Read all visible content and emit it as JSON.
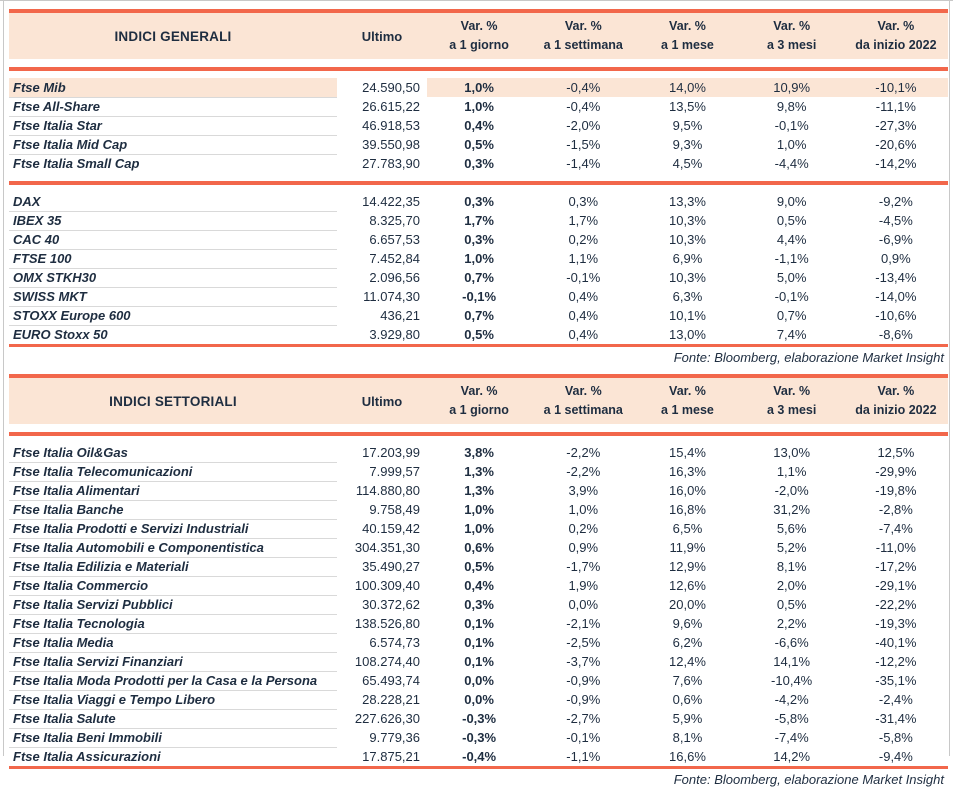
{
  "colors": {
    "border_red": "#f2674b",
    "header_peach": "#fbe5d5",
    "row_highlight": "#fbe5d5",
    "separator_grey": "#d9d9d9",
    "text_navy": "#1e2d40",
    "frame_grey": "#c8c8c8"
  },
  "chart_data": [
    {
      "type": "table",
      "title": "INDICI GENERALI",
      "ultimo_label": "Ultimo",
      "var_headers": [
        {
          "line1": "Var. %",
          "line2": "a 1 giorno"
        },
        {
          "line1": "Var. %",
          "line2": "a 1 settimana"
        },
        {
          "line1": "Var. %",
          "line2": "a 1 mese"
        },
        {
          "line1": "Var. %",
          "line2": "a 3 mesi"
        },
        {
          "line1": "Var. %",
          "line2": "da inizio 2022"
        }
      ],
      "groups": [
        {
          "rows": [
            {
              "name": "Ftse Mib",
              "ultimo": "24.590,50",
              "vars": [
                "1,0%",
                "-0,4%",
                "14,0%",
                "10,9%",
                "-10,1%"
              ],
              "highlight": true
            },
            {
              "name": "Ftse All-Share",
              "ultimo": "26.615,22",
              "vars": [
                "1,0%",
                "-0,4%",
                "13,5%",
                "9,8%",
                "-11,1%"
              ],
              "highlight": false
            },
            {
              "name": "Ftse Italia Star",
              "ultimo": "46.918,53",
              "vars": [
                "0,4%",
                "-2,0%",
                "9,5%",
                "-0,1%",
                "-27,3%"
              ],
              "highlight": false
            },
            {
              "name": "Ftse Italia Mid Cap",
              "ultimo": "39.550,98",
              "vars": [
                "0,5%",
                "-1,5%",
                "9,3%",
                "1,0%",
                "-20,6%"
              ],
              "highlight": false
            },
            {
              "name": "Ftse Italia Small Cap",
              "ultimo": "27.783,90",
              "vars": [
                "0,3%",
                "-1,4%",
                "4,5%",
                "-4,4%",
                "-14,2%"
              ],
              "highlight": false
            }
          ]
        },
        {
          "rows": [
            {
              "name": "DAX",
              "ultimo": "14.422,35",
              "vars": [
                "0,3%",
                "0,3%",
                "13,3%",
                "9,0%",
                "-9,2%"
              ],
              "highlight": false
            },
            {
              "name": "IBEX 35",
              "ultimo": "8.325,70",
              "vars": [
                "1,7%",
                "1,7%",
                "10,3%",
                "0,5%",
                "-4,5%"
              ],
              "highlight": false
            },
            {
              "name": "CAC 40",
              "ultimo": "6.657,53",
              "vars": [
                "0,3%",
                "0,2%",
                "10,3%",
                "4,4%",
                "-6,9%"
              ],
              "highlight": false
            },
            {
              "name": "FTSE 100",
              "ultimo": "7.452,84",
              "vars": [
                "1,0%",
                "1,1%",
                "6,9%",
                "-1,1%",
                "0,9%"
              ],
              "highlight": false
            },
            {
              "name": "OMX STKH30",
              "ultimo": "2.096,56",
              "vars": [
                "0,7%",
                "-0,1%",
                "10,3%",
                "5,0%",
                "-13,4%"
              ],
              "highlight": false
            },
            {
              "name": "SWISS MKT",
              "ultimo": "11.074,30",
              "vars": [
                "-0,1%",
                "0,4%",
                "6,3%",
                "-0,1%",
                "-14,0%"
              ],
              "highlight": false
            },
            {
              "name": "STOXX Europe 600",
              "ultimo": "436,21",
              "vars": [
                "0,7%",
                "0,4%",
                "10,1%",
                "0,7%",
                "-10,6%"
              ],
              "highlight": false
            },
            {
              "name": "EURO Stoxx 50",
              "ultimo": "3.929,80",
              "vars": [
                "0,5%",
                "0,4%",
                "13,0%",
                "7,4%",
                "-8,6%"
              ],
              "highlight": false
            }
          ]
        }
      ],
      "footer": "Fonte: Bloomberg, elaborazione Market Insight"
    },
    {
      "type": "table",
      "title": "INDICI SETTORIALI",
      "ultimo_label": "Ultimo",
      "var_headers": [
        {
          "line1": "Var. %",
          "line2": "a 1 giorno"
        },
        {
          "line1": "Var. %",
          "line2": "a 1 settimana"
        },
        {
          "line1": "Var. %",
          "line2": "a 1 mese"
        },
        {
          "line1": "Var. %",
          "line2": "a 3 mesi"
        },
        {
          "line1": "Var. %",
          "line2": "da inizio 2022"
        }
      ],
      "groups": [
        {
          "rows": [
            {
              "name": "Ftse Italia Oil&Gas",
              "ultimo": "17.203,99",
              "vars": [
                "3,8%",
                "-2,2%",
                "15,4%",
                "13,0%",
                "12,5%"
              ],
              "highlight": false
            },
            {
              "name": "Ftse Italia Telecomunicazioni",
              "ultimo": "7.999,57",
              "vars": [
                "1,3%",
                "-2,2%",
                "16,3%",
                "1,1%",
                "-29,9%"
              ],
              "highlight": false
            },
            {
              "name": "Ftse Italia Alimentari",
              "ultimo": "114.880,80",
              "vars": [
                "1,3%",
                "3,9%",
                "16,0%",
                "-2,0%",
                "-19,8%"
              ],
              "highlight": false
            },
            {
              "name": "Ftse Italia Banche",
              "ultimo": "9.758,49",
              "vars": [
                "1,0%",
                "1,0%",
                "16,8%",
                "31,2%",
                "-2,8%"
              ],
              "highlight": false
            },
            {
              "name": "Ftse Italia Prodotti e Servizi Industriali",
              "ultimo": "40.159,42",
              "vars": [
                "1,0%",
                "0,2%",
                "6,5%",
                "5,6%",
                "-7,4%"
              ],
              "highlight": false
            },
            {
              "name": "Ftse Italia Automobili e Componentistica",
              "ultimo": "304.351,30",
              "vars": [
                "0,6%",
                "0,9%",
                "11,9%",
                "5,2%",
                "-11,0%"
              ],
              "highlight": false
            },
            {
              "name": "Ftse Italia Edilizia e Materiali",
              "ultimo": "35.490,27",
              "vars": [
                "0,5%",
                "-1,7%",
                "12,9%",
                "8,1%",
                "-17,2%"
              ],
              "highlight": false
            },
            {
              "name": "Ftse Italia Commercio",
              "ultimo": "100.309,40",
              "vars": [
                "0,4%",
                "1,9%",
                "12,6%",
                "2,0%",
                "-29,1%"
              ],
              "highlight": false
            },
            {
              "name": "Ftse Italia Servizi Pubblici",
              "ultimo": "30.372,62",
              "vars": [
                "0,3%",
                "0,0%",
                "20,0%",
                "0,5%",
                "-22,2%"
              ],
              "highlight": false
            },
            {
              "name": "Ftse Italia Tecnologia",
              "ultimo": "138.526,80",
              "vars": [
                "0,1%",
                "-2,1%",
                "9,6%",
                "2,2%",
                "-19,3%"
              ],
              "highlight": false
            },
            {
              "name": "Ftse Italia Media",
              "ultimo": "6.574,73",
              "vars": [
                "0,1%",
                "-2,5%",
                "6,2%",
                "-6,6%",
                "-40,1%"
              ],
              "highlight": false
            },
            {
              "name": "Ftse Italia Servizi Finanziari",
              "ultimo": "108.274,40",
              "vars": [
                "0,1%",
                "-3,7%",
                "12,4%",
                "14,1%",
                "-12,2%"
              ],
              "highlight": false
            },
            {
              "name": "Ftse Italia Moda Prodotti per la Casa e la Persona",
              "ultimo": "65.493,74",
              "vars": [
                "0,0%",
                "-0,9%",
                "7,6%",
                "-10,4%",
                "-35,1%"
              ],
              "highlight": false
            },
            {
              "name": "Ftse Italia Viaggi e Tempo Libero",
              "ultimo": "28.228,21",
              "vars": [
                "0,0%",
                "-0,9%",
                "0,6%",
                "-4,2%",
                "-2,4%"
              ],
              "highlight": false
            },
            {
              "name": "Ftse Italia Salute",
              "ultimo": "227.626,30",
              "vars": [
                "-0,3%",
                "-2,7%",
                "5,9%",
                "-5,8%",
                "-31,4%"
              ],
              "highlight": false
            },
            {
              "name": "Ftse Italia Beni Immobili",
              "ultimo": "9.779,36",
              "vars": [
                "-0,3%",
                "-0,1%",
                "8,1%",
                "-7,4%",
                "-5,8%"
              ],
              "highlight": false
            },
            {
              "name": "Ftse Italia Assicurazioni",
              "ultimo": "17.875,21",
              "vars": [
                "-0,4%",
                "-1,1%",
                "16,6%",
                "14,2%",
                "-9,4%"
              ],
              "highlight": false
            }
          ]
        }
      ],
      "footer": "Fonte: Bloomberg, elaborazione Market Insight"
    }
  ]
}
